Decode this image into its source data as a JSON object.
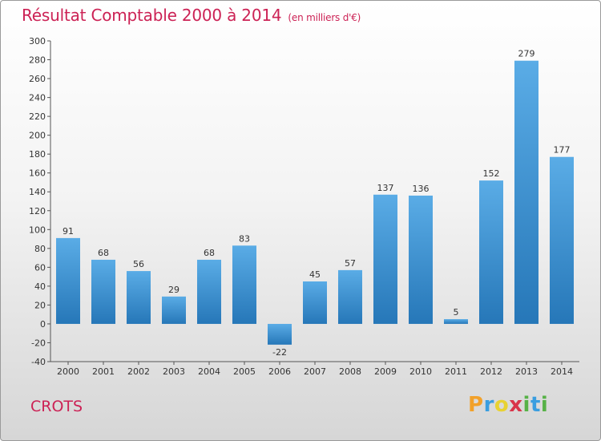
{
  "title": "Résultat Comptable 2000 à 2014",
  "subtitle": "(en milliers d'€)",
  "commune": "CROTS",
  "logo": {
    "p": "P",
    "r": "r",
    "o": "o",
    "x": "x",
    "i": "i",
    "t": "t",
    "i2": "i"
  },
  "colors": {
    "bar_top": "#5aace6",
    "bar_bottom": "#2677b8",
    "title": "#cc2255"
  },
  "chart_data": {
    "type": "bar",
    "title": "Résultat Comptable 2000 à 2014",
    "xlabel": "",
    "ylabel": "(en milliers d'€)",
    "categories": [
      "2000",
      "2001",
      "2002",
      "2003",
      "2004",
      "2005",
      "2006",
      "2007",
      "2008",
      "2009",
      "2010",
      "2011",
      "2012",
      "2013",
      "2014"
    ],
    "values": [
      91,
      68,
      56,
      29,
      68,
      83,
      -22,
      45,
      57,
      137,
      136,
      5,
      152,
      279,
      177
    ],
    "ylim": [
      -40,
      300
    ],
    "yticks": [
      -40,
      -20,
      0,
      20,
      40,
      60,
      80,
      100,
      120,
      140,
      160,
      180,
      200,
      220,
      240,
      260,
      280,
      300
    ],
    "grid": false
  }
}
